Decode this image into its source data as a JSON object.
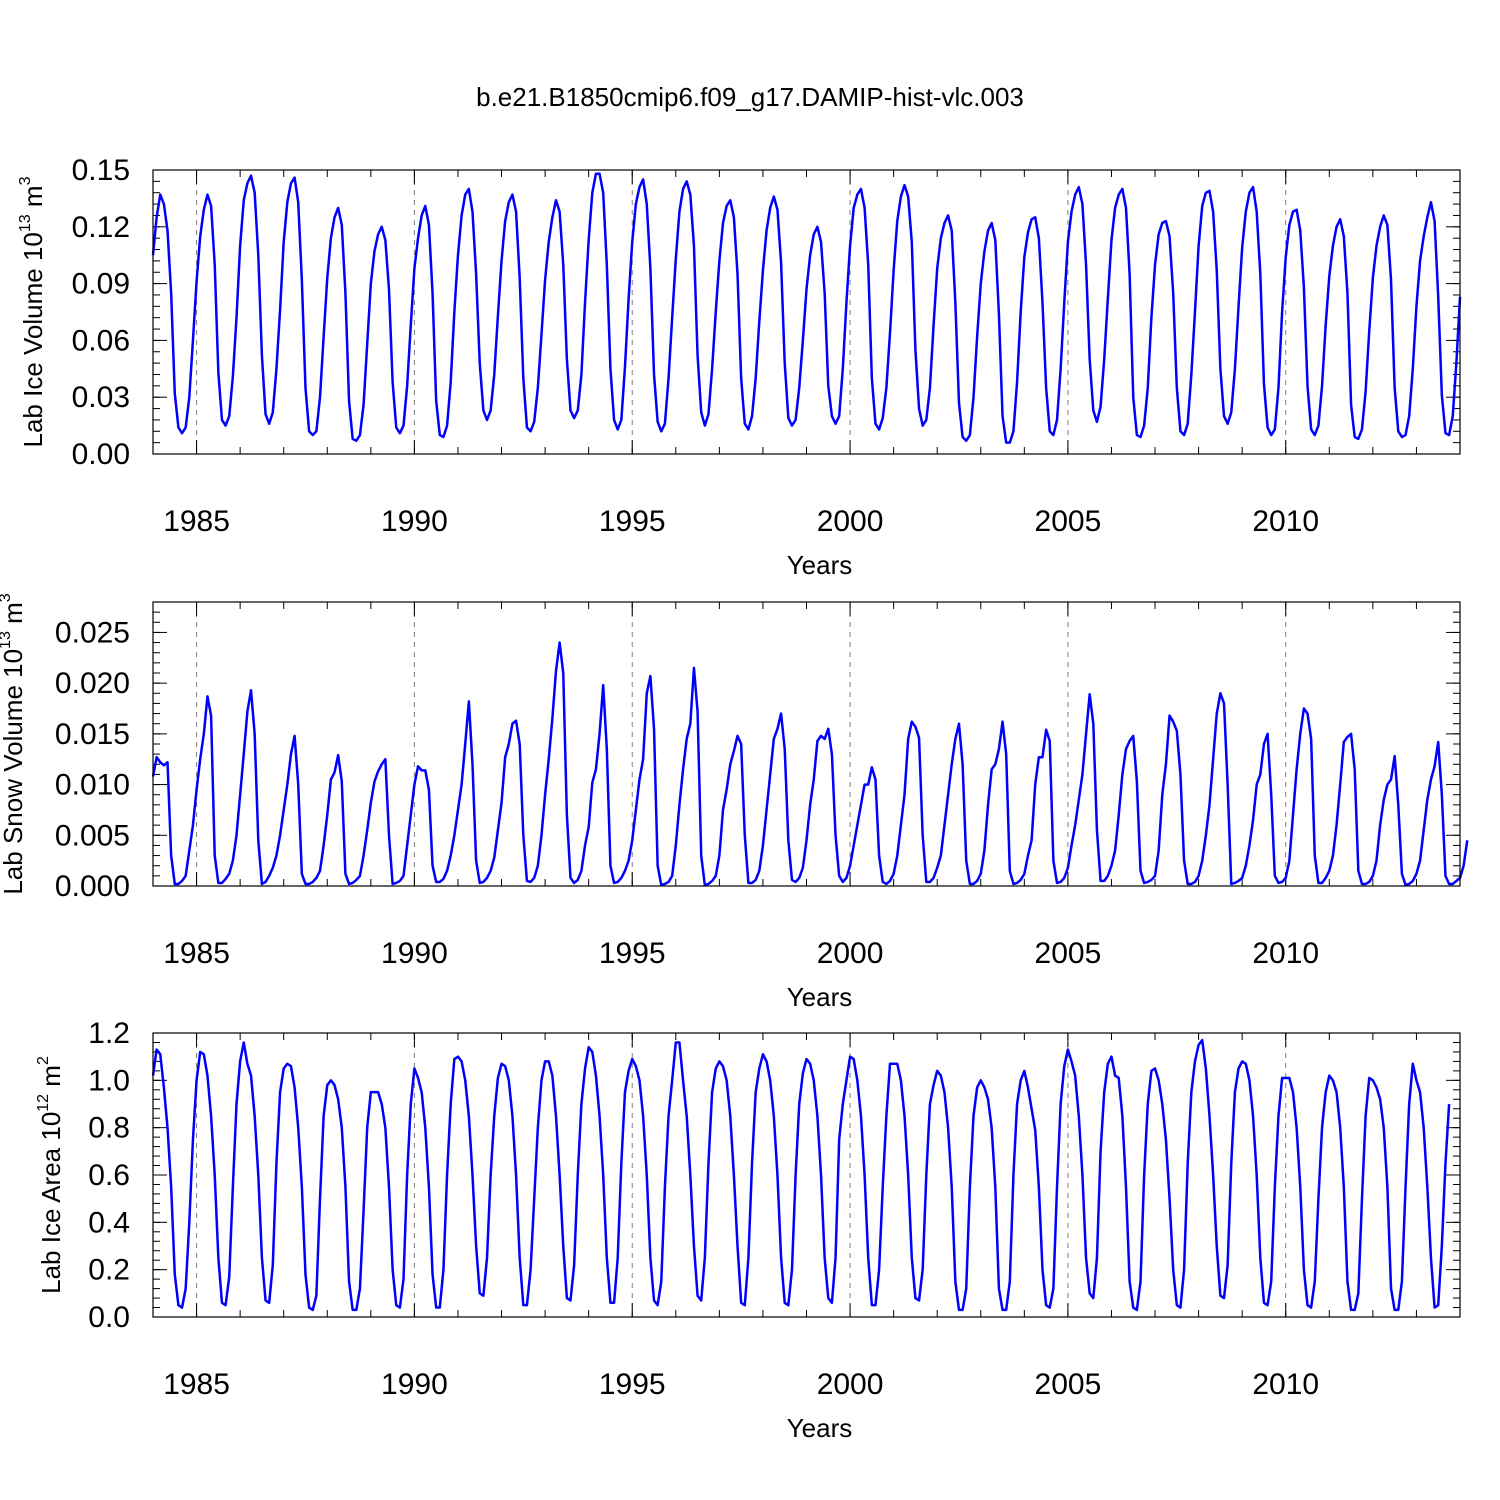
{
  "figure": {
    "title": "b.e21.B1850cmip6.f09_g17.DAMIP-hist-vlc.003"
  },
  "chart_data": [
    {
      "type": "line",
      "name": "ice-volume",
      "ylabel": "Lab Ice Volume 10",
      "ylabel_exp": "13",
      "ylabel_unit": " m",
      "ylabel_unit_exp": "3",
      "xlabel": "Years",
      "xlim": [
        1984.0,
        2014.0
      ],
      "ylim": [
        0.0,
        0.15
      ],
      "yticks": [
        0.0,
        0.03,
        0.06,
        0.09,
        0.12,
        0.15
      ],
      "ytick_labels": [
        "0.00",
        "0.03",
        "0.06",
        "0.09",
        "0.12",
        "0.15"
      ],
      "xticks": [
        1985,
        1990,
        1995,
        2000,
        2005,
        2010
      ],
      "xtick_labels": [
        "1985",
        "1990",
        "1995",
        "2000",
        "2005",
        "2010"
      ],
      "line_color": "#0000ff",
      "start_year": 1984.0,
      "step": 0.0833333,
      "values": [
        0.105,
        0.125,
        0.137,
        0.132,
        0.118,
        0.085,
        0.032,
        0.014,
        0.011,
        0.014,
        0.03,
        0.06,
        0.091,
        0.115,
        0.129,
        0.137,
        0.131,
        0.1,
        0.043,
        0.018,
        0.015,
        0.02,
        0.041,
        0.072,
        0.11,
        0.134,
        0.143,
        0.147,
        0.138,
        0.105,
        0.052,
        0.021,
        0.016,
        0.022,
        0.045,
        0.076,
        0.112,
        0.133,
        0.143,
        0.146,
        0.133,
        0.092,
        0.035,
        0.012,
        0.01,
        0.012,
        0.03,
        0.062,
        0.093,
        0.114,
        0.125,
        0.13,
        0.121,
        0.085,
        0.028,
        0.008,
        0.007,
        0.01,
        0.026,
        0.058,
        0.09,
        0.107,
        0.116,
        0.12,
        0.113,
        0.087,
        0.038,
        0.014,
        0.011,
        0.015,
        0.036,
        0.068,
        0.098,
        0.114,
        0.126,
        0.131,
        0.121,
        0.085,
        0.028,
        0.01,
        0.009,
        0.015,
        0.038,
        0.075,
        0.105,
        0.126,
        0.137,
        0.14,
        0.128,
        0.095,
        0.048,
        0.023,
        0.018,
        0.023,
        0.042,
        0.073,
        0.102,
        0.123,
        0.133,
        0.137,
        0.128,
        0.093,
        0.04,
        0.014,
        0.012,
        0.017,
        0.035,
        0.063,
        0.092,
        0.112,
        0.125,
        0.134,
        0.128,
        0.1,
        0.05,
        0.023,
        0.019,
        0.023,
        0.042,
        0.08,
        0.113,
        0.138,
        0.148,
        0.148,
        0.138,
        0.1,
        0.045,
        0.018,
        0.013,
        0.018,
        0.046,
        0.082,
        0.112,
        0.132,
        0.141,
        0.145,
        0.132,
        0.098,
        0.042,
        0.017,
        0.012,
        0.016,
        0.04,
        0.072,
        0.103,
        0.128,
        0.14,
        0.144,
        0.137,
        0.11,
        0.052,
        0.022,
        0.015,
        0.021,
        0.045,
        0.075,
        0.102,
        0.122,
        0.131,
        0.134,
        0.125,
        0.095,
        0.04,
        0.016,
        0.013,
        0.02,
        0.04,
        0.07,
        0.097,
        0.118,
        0.13,
        0.136,
        0.129,
        0.101,
        0.048,
        0.019,
        0.015,
        0.018,
        0.035,
        0.06,
        0.087,
        0.105,
        0.116,
        0.12,
        0.112,
        0.085,
        0.036,
        0.02,
        0.016,
        0.02,
        0.045,
        0.08,
        0.11,
        0.13,
        0.137,
        0.14,
        0.13,
        0.1,
        0.04,
        0.016,
        0.013,
        0.019,
        0.035,
        0.064,
        0.097,
        0.123,
        0.136,
        0.142,
        0.136,
        0.112,
        0.055,
        0.024,
        0.015,
        0.018,
        0.035,
        0.068,
        0.098,
        0.114,
        0.122,
        0.126,
        0.118,
        0.08,
        0.027,
        0.009,
        0.007,
        0.01,
        0.03,
        0.062,
        0.09,
        0.107,
        0.118,
        0.122,
        0.113,
        0.074,
        0.02,
        0.006,
        0.006,
        0.012,
        0.038,
        0.075,
        0.104,
        0.117,
        0.124,
        0.125,
        0.114,
        0.08,
        0.035,
        0.012,
        0.01,
        0.018,
        0.045,
        0.08,
        0.112,
        0.128,
        0.137,
        0.141,
        0.132,
        0.1,
        0.05,
        0.023,
        0.017,
        0.025,
        0.05,
        0.082,
        0.113,
        0.13,
        0.137,
        0.14,
        0.13,
        0.095,
        0.03,
        0.01,
        0.009,
        0.015,
        0.035,
        0.072,
        0.1,
        0.116,
        0.122,
        0.123,
        0.115,
        0.085,
        0.035,
        0.012,
        0.01,
        0.016,
        0.042,
        0.075,
        0.11,
        0.131,
        0.138,
        0.139,
        0.128,
        0.097,
        0.045,
        0.02,
        0.016,
        0.022,
        0.045,
        0.078,
        0.109,
        0.128,
        0.138,
        0.141,
        0.128,
        0.095,
        0.037,
        0.014,
        0.01,
        0.013,
        0.035,
        0.075,
        0.104,
        0.121,
        0.128,
        0.129,
        0.118,
        0.088,
        0.036,
        0.013,
        0.01,
        0.015,
        0.036,
        0.068,
        0.094,
        0.11,
        0.12,
        0.124,
        0.115,
        0.085,
        0.026,
        0.009,
        0.008,
        0.013,
        0.033,
        0.065,
        0.093,
        0.11,
        0.12,
        0.126,
        0.121,
        0.092,
        0.035,
        0.012,
        0.009,
        0.01,
        0.02,
        0.045,
        0.078,
        0.102,
        0.115,
        0.125,
        0.133,
        0.123,
        0.083,
        0.031,
        0.011,
        0.01,
        0.02,
        0.048,
        0.083
      ]
    },
    {
      "type": "line",
      "name": "snow-volume",
      "ylabel": "Lab Snow Volume 10",
      "ylabel_exp": "13",
      "ylabel_unit": " m",
      "ylabel_unit_exp": "3",
      "xlabel": "Years",
      "xlim": [
        1984.0,
        2014.0
      ],
      "ylim": [
        0.0,
        0.028
      ],
      "yticks": [
        0.0,
        0.005,
        0.01,
        0.015,
        0.02,
        0.025
      ],
      "ytick_labels": [
        "0.000",
        "0.005",
        "0.010",
        "0.015",
        "0.020",
        "0.025"
      ],
      "xticks": [
        1985,
        1990,
        1995,
        2000,
        2005,
        2010
      ],
      "xtick_labels": [
        "1985",
        "1990",
        "1995",
        "2000",
        "2005",
        "2010"
      ],
      "line_color": "#0000ff",
      "start_year": 1984.0,
      "step": 0.0833333,
      "values": [
        0.0108,
        0.0127,
        0.0122,
        0.0119,
        0.0122,
        0.003,
        0.0002,
        0.0002,
        0.0005,
        0.001,
        0.0035,
        0.006,
        0.0095,
        0.0125,
        0.015,
        0.0187,
        0.0168,
        0.003,
        0.0003,
        0.0003,
        0.0007,
        0.0012,
        0.0025,
        0.005,
        0.009,
        0.013,
        0.0172,
        0.0193,
        0.015,
        0.0045,
        0.0002,
        0.0004,
        0.001,
        0.0018,
        0.003,
        0.005,
        0.0075,
        0.01,
        0.013,
        0.0148,
        0.01,
        0.0012,
        0.0002,
        0.0002,
        0.0004,
        0.0008,
        0.0015,
        0.004,
        0.007,
        0.0105,
        0.0112,
        0.0129,
        0.0103,
        0.0012,
        0.0002,
        0.0003,
        0.0006,
        0.001,
        0.003,
        0.0055,
        0.0082,
        0.0103,
        0.0113,
        0.012,
        0.0125,
        0.005,
        0.0002,
        0.0003,
        0.0005,
        0.001,
        0.004,
        0.007,
        0.01,
        0.0118,
        0.0114,
        0.0114,
        0.0095,
        0.002,
        0.0004,
        0.0004,
        0.0007,
        0.0015,
        0.003,
        0.005,
        0.0075,
        0.01,
        0.014,
        0.0182,
        0.012,
        0.0025,
        0.0003,
        0.0004,
        0.0008,
        0.0015,
        0.0028,
        0.0055,
        0.0082,
        0.0127,
        0.014,
        0.016,
        0.0163,
        0.014,
        0.005,
        0.0005,
        0.0004,
        0.0008,
        0.002,
        0.005,
        0.009,
        0.0125,
        0.0165,
        0.0212,
        0.024,
        0.021,
        0.007,
        0.0008,
        0.0003,
        0.0006,
        0.0015,
        0.004,
        0.0058,
        0.0102,
        0.0115,
        0.015,
        0.0198,
        0.0135,
        0.002,
        0.0003,
        0.0004,
        0.0008,
        0.0015,
        0.0025,
        0.0045,
        0.0075,
        0.0105,
        0.0125,
        0.019,
        0.0207,
        0.0155,
        0.002,
        0.0001,
        0.0002,
        0.0004,
        0.001,
        0.004,
        0.008,
        0.0115,
        0.0145,
        0.016,
        0.0215,
        0.0172,
        0.003,
        0.0001,
        0.0002,
        0.0005,
        0.001,
        0.003,
        0.0075,
        0.0095,
        0.012,
        0.0133,
        0.0148,
        0.014,
        0.005,
        0.0003,
        0.0003,
        0.0006,
        0.0015,
        0.004,
        0.0075,
        0.011,
        0.0145,
        0.0155,
        0.017,
        0.0135,
        0.0045,
        0.0006,
        0.0004,
        0.0008,
        0.0018,
        0.0045,
        0.008,
        0.0105,
        0.0143,
        0.0148,
        0.0145,
        0.0155,
        0.013,
        0.005,
        0.001,
        0.0004,
        0.0008,
        0.002,
        0.004,
        0.006,
        0.008,
        0.01,
        0.01,
        0.0117,
        0.0105,
        0.003,
        0.0004,
        0.0002,
        0.0005,
        0.0012,
        0.003,
        0.006,
        0.009,
        0.0145,
        0.0162,
        0.0157,
        0.0146,
        0.005,
        0.0004,
        0.0004,
        0.0008,
        0.0018,
        0.003,
        0.006,
        0.009,
        0.012,
        0.0145,
        0.016,
        0.012,
        0.0025,
        0.0002,
        0.0002,
        0.0005,
        0.0012,
        0.0035,
        0.008,
        0.0115,
        0.012,
        0.0135,
        0.0162,
        0.013,
        0.0015,
        0.0002,
        0.0003,
        0.0006,
        0.0012,
        0.003,
        0.0045,
        0.01,
        0.0127,
        0.0127,
        0.0154,
        0.0143,
        0.0025,
        0.0003,
        0.0004,
        0.0008,
        0.0018,
        0.004,
        0.006,
        0.0085,
        0.011,
        0.015,
        0.0189,
        0.016,
        0.0055,
        0.0005,
        0.0005,
        0.001,
        0.002,
        0.0035,
        0.007,
        0.011,
        0.0135,
        0.0143,
        0.0148,
        0.0103,
        0.0015,
        0.0003,
        0.0004,
        0.0006,
        0.001,
        0.0035,
        0.009,
        0.012,
        0.0168,
        0.0162,
        0.0153,
        0.011,
        0.0025,
        0.0002,
        0.0002,
        0.0004,
        0.001,
        0.0025,
        0.005,
        0.008,
        0.0125,
        0.017,
        0.019,
        0.018,
        0.01,
        0.0002,
        0.0003,
        0.0005,
        0.0008,
        0.002,
        0.004,
        0.0065,
        0.01,
        0.011,
        0.014,
        0.015,
        0.009,
        0.001,
        0.0003,
        0.0004,
        0.0008,
        0.0025,
        0.007,
        0.0115,
        0.015,
        0.0175,
        0.017,
        0.0145,
        0.003,
        0.0003,
        0.0003,
        0.0008,
        0.0015,
        0.003,
        0.006,
        0.01,
        0.0142,
        0.0147,
        0.015,
        0.0115,
        0.0015,
        0.0002,
        0.0002,
        0.0004,
        0.001,
        0.0025,
        0.006,
        0.0085,
        0.01,
        0.0105,
        0.0128,
        0.008,
        0.0012,
        0.0001,
        0.0002,
        0.0005,
        0.0012,
        0.0025,
        0.0055,
        0.0085,
        0.0105,
        0.0118,
        0.0142,
        0.009,
        0.001,
        0.0002,
        0.0002,
        0.0005,
        0.0008,
        0.002,
        0.0045
      ]
    },
    {
      "type": "line",
      "name": "ice-area",
      "ylabel": "Lab Ice Area 10",
      "ylabel_exp": "12",
      "ylabel_unit": " m",
      "ylabel_unit_exp": "2",
      "xlabel": "Years",
      "xlim": [
        1984.0,
        2014.0
      ],
      "ylim": [
        0.0,
        1.2
      ],
      "yticks": [
        0.0,
        0.2,
        0.4,
        0.6,
        0.8,
        1.0,
        1.2
      ],
      "ytick_labels": [
        "0.0",
        "0.2",
        "0.4",
        "0.6",
        "0.8",
        "1.0",
        "1.2"
      ],
      "xticks": [
        1985,
        1990,
        1995,
        2000,
        2005,
        2010
      ],
      "xtick_labels": [
        "1985",
        "1990",
        "1995",
        "2000",
        "2005",
        "2010"
      ],
      "line_color": "#0000ff",
      "start_year": 1984.0,
      "step": 0.0833333,
      "values": [
        1.02,
        1.13,
        1.11,
        0.97,
        0.8,
        0.55,
        0.18,
        0.05,
        0.04,
        0.12,
        0.4,
        0.75,
        1.0,
        1.12,
        1.11,
        1.02,
        0.85,
        0.6,
        0.25,
        0.06,
        0.05,
        0.17,
        0.55,
        0.9,
        1.08,
        1.16,
        1.07,
        1.02,
        0.85,
        0.6,
        0.25,
        0.07,
        0.06,
        0.22,
        0.65,
        0.95,
        1.05,
        1.07,
        1.06,
        0.97,
        0.8,
        0.55,
        0.18,
        0.04,
        0.03,
        0.09,
        0.5,
        0.85,
        0.98,
        1.0,
        0.98,
        0.92,
        0.8,
        0.55,
        0.15,
        0.03,
        0.03,
        0.12,
        0.45,
        0.8,
        0.95,
        0.95,
        0.95,
        0.9,
        0.8,
        0.55,
        0.2,
        0.05,
        0.04,
        0.16,
        0.6,
        0.9,
        1.05,
        1.01,
        0.95,
        0.8,
        0.55,
        0.18,
        0.04,
        0.04,
        0.2,
        0.6,
        0.9,
        1.09,
        1.1,
        1.08,
        1.0,
        0.85,
        0.6,
        0.3,
        0.1,
        0.09,
        0.25,
        0.6,
        0.85,
        1.01,
        1.07,
        1.06,
        1.0,
        0.85,
        0.6,
        0.25,
        0.05,
        0.05,
        0.2,
        0.5,
        0.8,
        1.0,
        1.08,
        1.08,
        1.02,
        0.85,
        0.6,
        0.3,
        0.08,
        0.07,
        0.22,
        0.6,
        0.9,
        1.05,
        1.14,
        1.12,
        1.02,
        0.85,
        0.6,
        0.25,
        0.06,
        0.06,
        0.25,
        0.65,
        0.95,
        1.04,
        1.09,
        1.06,
        1.0,
        0.85,
        0.6,
        0.25,
        0.07,
        0.05,
        0.15,
        0.55,
        0.85,
        1.0,
        1.16,
        1.16,
        1.0,
        0.85,
        0.6,
        0.3,
        0.09,
        0.07,
        0.25,
        0.65,
        0.95,
        1.05,
        1.08,
        1.06,
        1.0,
        0.85,
        0.6,
        0.3,
        0.06,
        0.05,
        0.25,
        0.65,
        0.95,
        1.05,
        1.11,
        1.08,
        1.0,
        0.85,
        0.6,
        0.25,
        0.06,
        0.05,
        0.2,
        0.6,
        0.9,
        1.03,
        1.09,
        1.07,
        1.0,
        0.85,
        0.6,
        0.25,
        0.08,
        0.06,
        0.25,
        0.75,
        0.9,
        1.0,
        1.1,
        1.09,
        1.0,
        0.85,
        0.6,
        0.25,
        0.05,
        0.05,
        0.2,
        0.55,
        0.85,
        1.07,
        1.07,
        1.07,
        1.0,
        0.85,
        0.6,
        0.25,
        0.08,
        0.07,
        0.2,
        0.6,
        0.9,
        0.98,
        1.04,
        1.02,
        0.95,
        0.8,
        0.55,
        0.15,
        0.03,
        0.03,
        0.12,
        0.55,
        0.85,
        0.97,
        1.0,
        0.97,
        0.92,
        0.8,
        0.55,
        0.12,
        0.03,
        0.03,
        0.15,
        0.6,
        0.9,
        1.0,
        1.04,
        0.97,
        0.88,
        0.79,
        0.55,
        0.2,
        0.05,
        0.04,
        0.12,
        0.55,
        0.9,
        1.06,
        1.13,
        1.08,
        1.02,
        0.85,
        0.6,
        0.25,
        0.1,
        0.08,
        0.25,
        0.7,
        0.95,
        1.07,
        1.1,
        1.02,
        1.01,
        0.85,
        0.55,
        0.15,
        0.04,
        0.03,
        0.15,
        0.6,
        0.9,
        1.04,
        1.05,
        1.0,
        0.9,
        0.75,
        0.5,
        0.2,
        0.05,
        0.04,
        0.2,
        0.65,
        0.95,
        1.08,
        1.15,
        1.17,
        1.05,
        0.85,
        0.6,
        0.3,
        0.09,
        0.08,
        0.22,
        0.65,
        0.95,
        1.05,
        1.08,
        1.07,
        1.0,
        0.85,
        0.6,
        0.25,
        0.06,
        0.05,
        0.15,
        0.55,
        0.85,
        1.01,
        1.01,
        1.01,
        0.95,
        0.8,
        0.55,
        0.2,
        0.05,
        0.04,
        0.15,
        0.5,
        0.8,
        0.95,
        1.02,
        1.0,
        0.95,
        0.8,
        0.55,
        0.15,
        0.03,
        0.03,
        0.1,
        0.5,
        0.85,
        1.01,
        1.0,
        0.97,
        0.92,
        0.8,
        0.55,
        0.12,
        0.03,
        0.03,
        0.15,
        0.55,
        0.9,
        1.07,
        1.0,
        0.95,
        0.8,
        0.55,
        0.25,
        0.04,
        0.05,
        0.3,
        0.65,
        0.9
      ]
    }
  ]
}
